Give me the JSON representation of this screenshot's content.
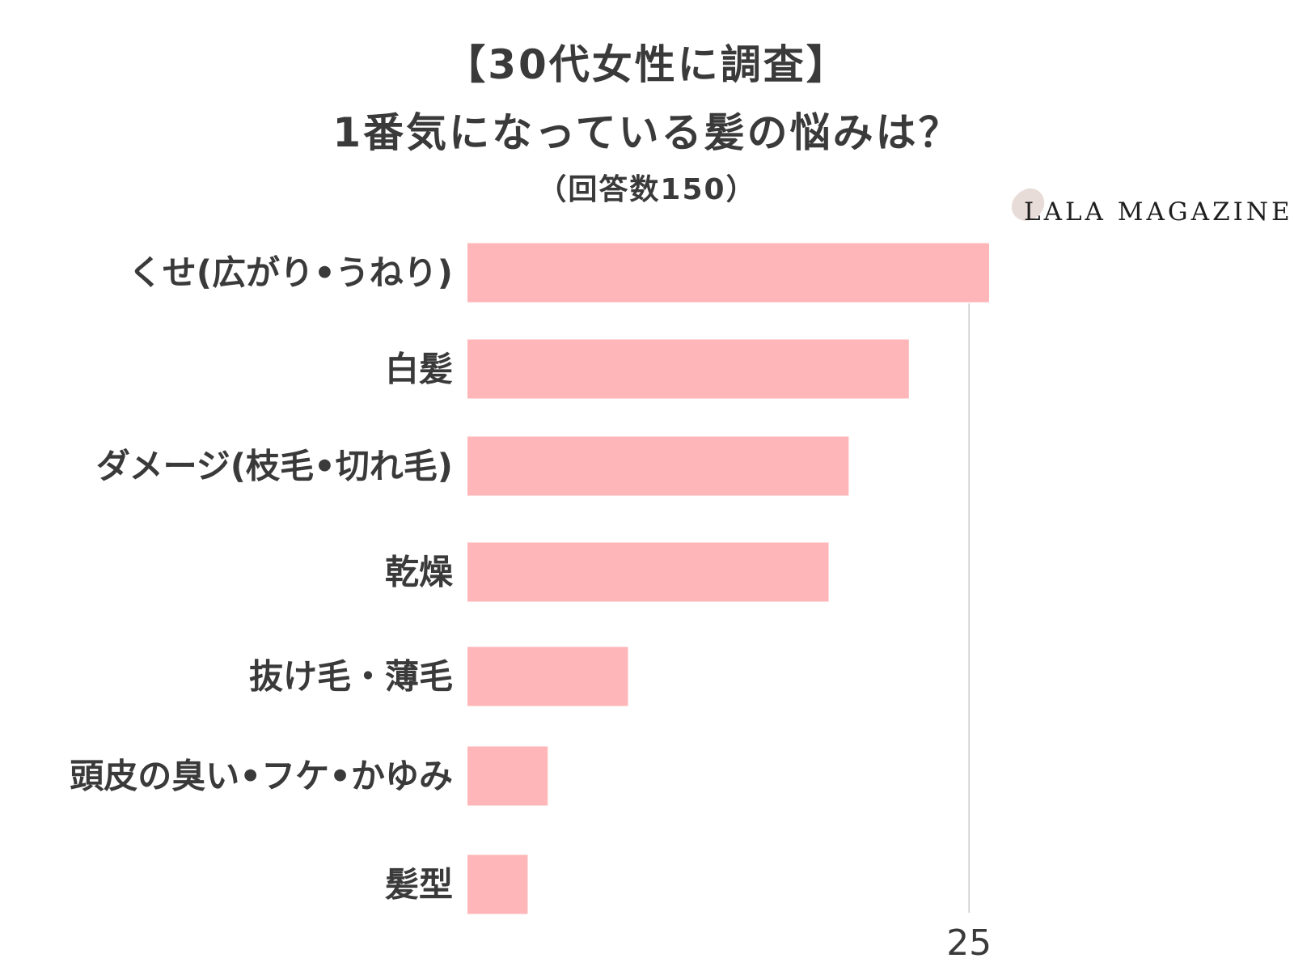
{
  "title": {
    "line1": "【30代女性に調査】",
    "line2": "1番気になっている髪の悩みは？",
    "subtitle": "（回答数150）"
  },
  "logo": {
    "text": "LALA MAGAZINE"
  },
  "colors": {
    "bar": "#feb6b9",
    "text": "#3a3a3a",
    "gridline": "#cccccc",
    "logo_mark": "#e8dcd8"
  },
  "chart_data": {
    "type": "bar",
    "orientation": "horizontal",
    "categories": [
      "くせ(広がり•うねり)",
      "白髪",
      "ダメージ(枝毛•切れ毛)",
      "乾燥",
      "抜け毛・薄毛",
      "頭皮の臭い•フケ•かゆみ",
      "髪型"
    ],
    "values": [
      26,
      22,
      19,
      18,
      8,
      4,
      3
    ],
    "xlim": [
      0,
      26
    ],
    "ticks": [
      25
    ],
    "tick_labels": [
      "25"
    ],
    "gridlines": [
      25
    ],
    "grid": true,
    "legend": "none"
  }
}
